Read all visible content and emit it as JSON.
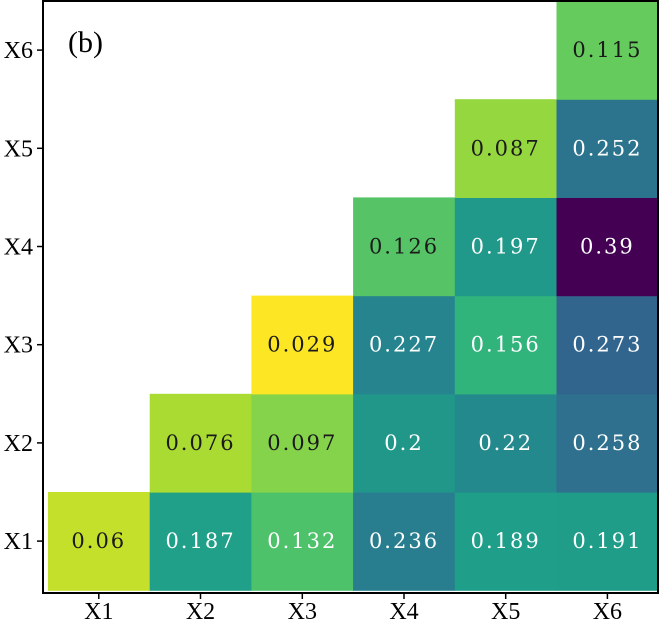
{
  "chart_data": {
    "type": "heatmap",
    "panel_label": "(b)",
    "x_categories": [
      "X1",
      "X2",
      "X3",
      "X4",
      "X5",
      "X6"
    ],
    "y_categories": [
      "X1",
      "X2",
      "X3",
      "X4",
      "X5",
      "X6"
    ],
    "cells": [
      {
        "x": "X1",
        "y": "X1",
        "value": 0.06,
        "label": "0.06"
      },
      {
        "x": "X2",
        "y": "X1",
        "value": 0.187,
        "label": "0.187"
      },
      {
        "x": "X3",
        "y": "X1",
        "value": 0.132,
        "label": "0.132"
      },
      {
        "x": "X4",
        "y": "X1",
        "value": 0.236,
        "label": "0.236"
      },
      {
        "x": "X5",
        "y": "X1",
        "value": 0.189,
        "label": "0.189"
      },
      {
        "x": "X6",
        "y": "X1",
        "value": 0.191,
        "label": "0.191"
      },
      {
        "x": "X2",
        "y": "X2",
        "value": 0.076,
        "label": "0.076"
      },
      {
        "x": "X3",
        "y": "X2",
        "value": 0.097,
        "label": "0.097"
      },
      {
        "x": "X4",
        "y": "X2",
        "value": 0.2,
        "label": "0.2"
      },
      {
        "x": "X5",
        "y": "X2",
        "value": 0.22,
        "label": "0.22"
      },
      {
        "x": "X6",
        "y": "X2",
        "value": 0.258,
        "label": "0.258"
      },
      {
        "x": "X3",
        "y": "X3",
        "value": 0.029,
        "label": "0.029"
      },
      {
        "x": "X4",
        "y": "X3",
        "value": 0.227,
        "label": "0.227"
      },
      {
        "x": "X5",
        "y": "X3",
        "value": 0.156,
        "label": "0.156"
      },
      {
        "x": "X6",
        "y": "X3",
        "value": 0.273,
        "label": "0.273"
      },
      {
        "x": "X4",
        "y": "X4",
        "value": 0.126,
        "label": "0.126"
      },
      {
        "x": "X5",
        "y": "X4",
        "value": 0.197,
        "label": "0.197"
      },
      {
        "x": "X6",
        "y": "X4",
        "value": 0.39,
        "label": "0.39"
      },
      {
        "x": "X5",
        "y": "X5",
        "value": 0.087,
        "label": "0.087"
      },
      {
        "x": "X6",
        "y": "X5",
        "value": 0.252,
        "label": "0.252"
      },
      {
        "x": "X6",
        "y": "X6",
        "value": 0.115,
        "label": "0.115"
      }
    ],
    "colormap": {
      "name": "viridis",
      "vmin": 0.029,
      "vmax": 0.39,
      "stops": [
        "#440154",
        "#482878",
        "#3e4989",
        "#31688e",
        "#26828e",
        "#1f9e89",
        "#35b779",
        "#6ece58",
        "#b5de2b",
        "#fde725"
      ]
    },
    "grid": false,
    "legend": "none"
  }
}
